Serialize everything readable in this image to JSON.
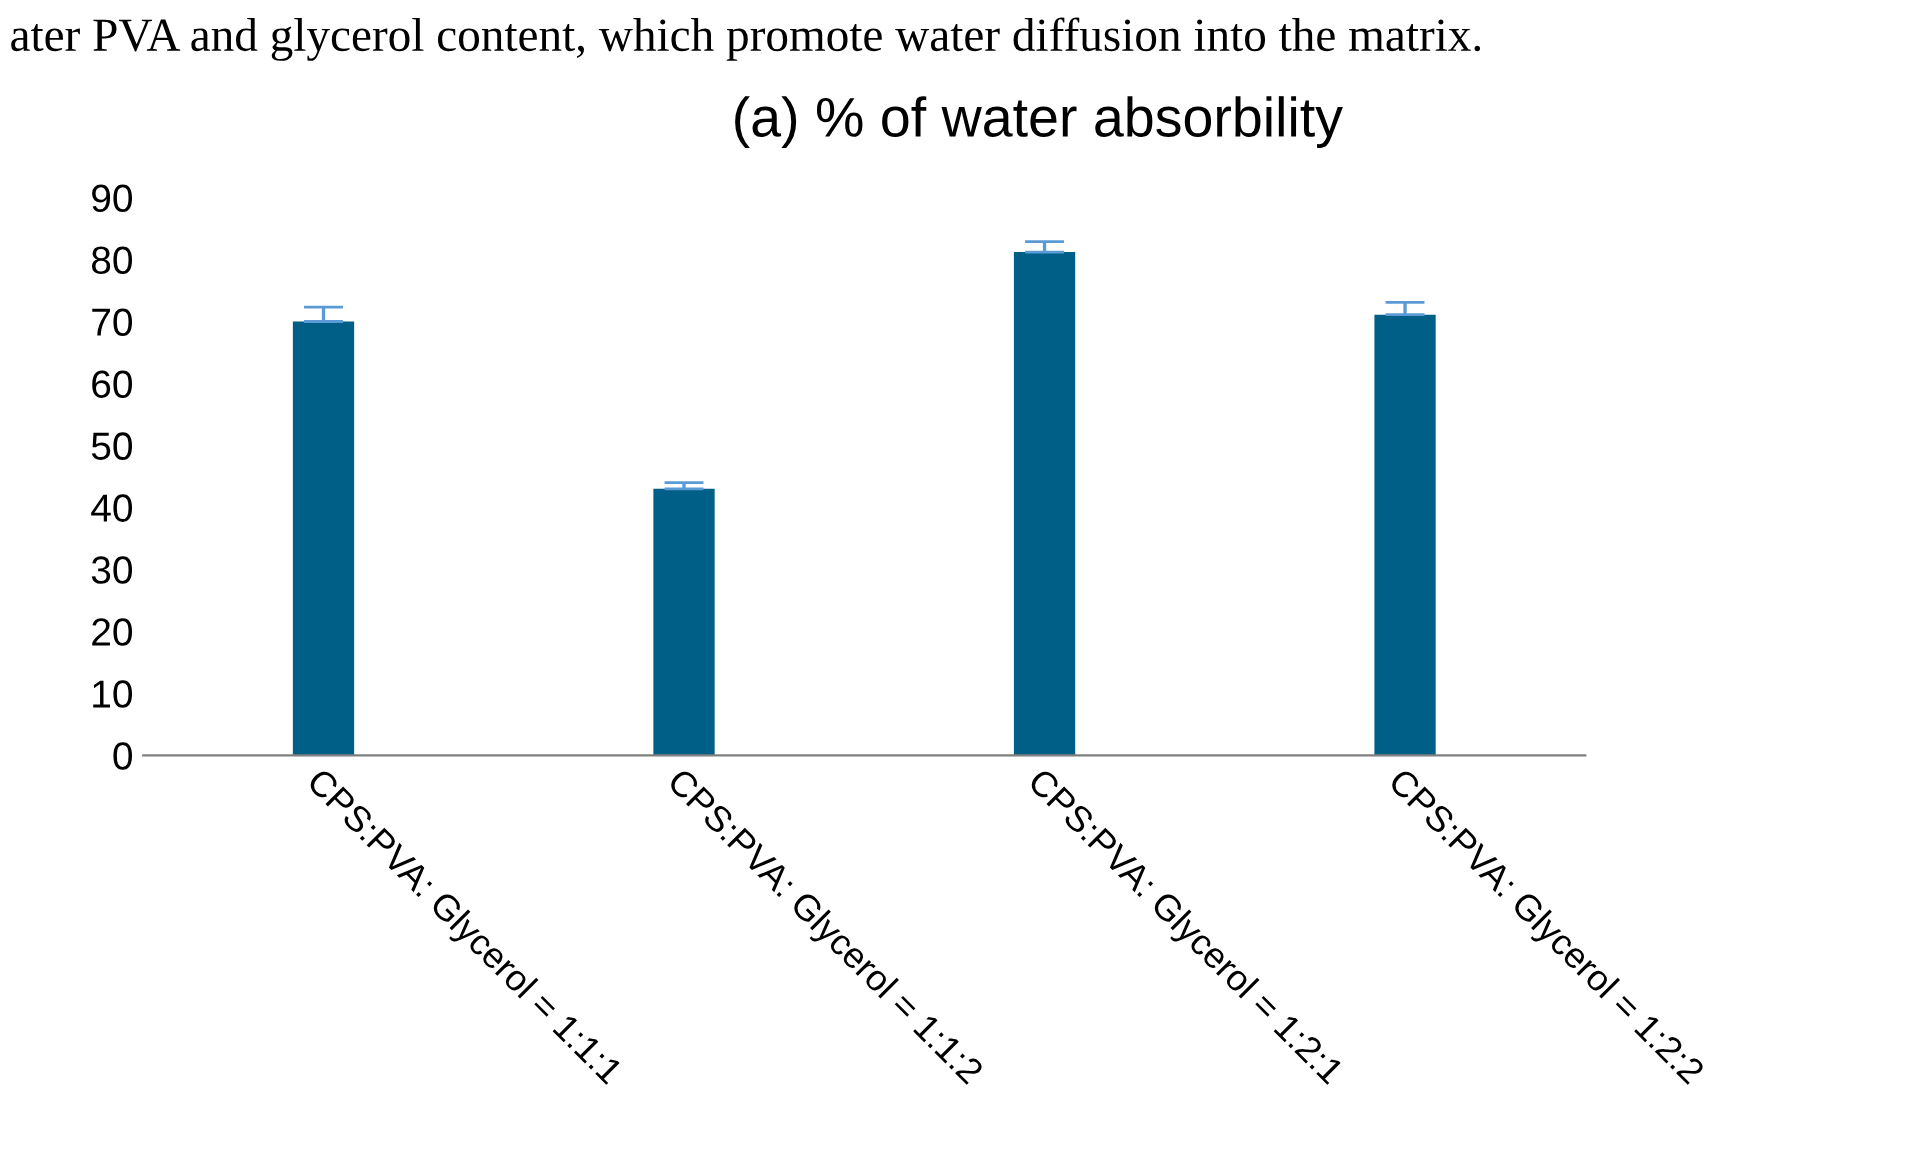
{
  "chart_data": {
    "type": "bar",
    "title": "(a) % of water absorbility",
    "annotations": [
      "ater PVA and glycerol content, which promote water diffusion into the matrix."
    ],
    "categories": [
      "CPS:PVA: Glycerol = 1:1:1",
      "CPS:PVA: Glycerol = 1:1:2",
      "CPS:PVA: Glycerol = 1:2:1",
      "CPS:PVA: Glycerol = 1:2:2"
    ],
    "values": [
      70,
      43,
      81.2,
      71.1
    ],
    "errors": [
      [
        70,
        72.3
      ],
      [
        43,
        44
      ],
      [
        81.2,
        82.9
      ],
      [
        71.1,
        73.1
      ]
    ],
    "color": "#005f87",
    "ylim": [
      0,
      90
    ],
    "yticks": [
      0,
      10,
      20,
      30,
      40,
      50,
      60,
      70,
      80,
      90
    ],
    "grid": false
  }
}
